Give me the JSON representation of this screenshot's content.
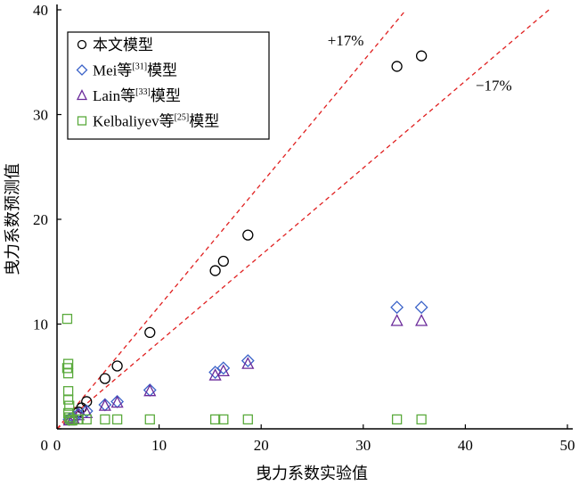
{
  "chart_data": {
    "type": "scatter",
    "title": "",
    "xlabel": "曳力系数实验值",
    "ylabel": "曳力系数预测值",
    "xlim": [
      0,
      50
    ],
    "ylim": [
      0,
      40
    ],
    "xticks": [
      "0",
      "10",
      "20",
      "30",
      "40",
      "50"
    ],
    "yticks": [
      "0",
      "10",
      "20",
      "30",
      "40"
    ],
    "grid": false,
    "legend_position": "top-left",
    "reference_lines": [
      {
        "label": "+17%",
        "slope": 1.17,
        "color": "#e02020"
      },
      {
        "label": "−17%",
        "slope": 0.83,
        "color": "#e02020"
      }
    ],
    "series": [
      {
        "name": "本文模型",
        "sup": "",
        "marker": "circle",
        "color": "#000000",
        "x": [
          2.1,
          2.4,
          2.9,
          4.7,
          5.9,
          9.1,
          15.5,
          16.3,
          18.7,
          33.3,
          35.7
        ],
        "y": [
          1.6,
          2.0,
          2.6,
          4.8,
          6.0,
          9.2,
          15.1,
          16.0,
          18.5,
          34.6,
          35.6
        ]
      },
      {
        "name": "Mei等",
        "sup": "[31]",
        "suffix": "模型",
        "marker": "diamond",
        "color": "#3a62c8",
        "x": [
          1.2,
          1.6,
          2.1,
          2.9,
          4.7,
          5.9,
          9.1,
          15.5,
          16.3,
          18.7,
          33.3,
          35.7
        ],
        "y": [
          0.9,
          1.1,
          1.4,
          1.7,
          2.3,
          2.6,
          3.7,
          5.4,
          5.8,
          6.5,
          11.6,
          11.6
        ]
      },
      {
        "name": "Lain等",
        "sup": "[33]",
        "suffix": "模型",
        "marker": "triangle",
        "color": "#6a2a9a",
        "x": [
          1.2,
          1.6,
          2.1,
          2.9,
          4.7,
          5.9,
          9.1,
          15.5,
          16.3,
          18.7,
          33.3,
          35.7
        ],
        "y": [
          0.8,
          1.0,
          1.3,
          1.5,
          2.2,
          2.5,
          3.6,
          5.1,
          5.5,
          6.2,
          10.3,
          10.3
        ]
      },
      {
        "name": "Kelbaliyev等",
        "sup": "[25]",
        "suffix": "模型",
        "marker": "square",
        "color": "#5aaa3c",
        "x": [
          1.0,
          1.1,
          1.0,
          1.1,
          1.1,
          1.1,
          1.2,
          1.1,
          1.2,
          1.3,
          1.5,
          2.1,
          2.9,
          4.7,
          5.9,
          9.1,
          15.5,
          16.3,
          18.7,
          33.3,
          35.7
        ],
        "y": [
          10.5,
          6.2,
          5.8,
          5.3,
          3.6,
          2.8,
          2.2,
          1.5,
          1.1,
          0.9,
          0.8,
          0.9,
          0.9,
          0.9,
          0.9,
          0.9,
          0.9,
          0.9,
          0.9,
          0.9,
          0.9
        ]
      }
    ]
  },
  "legend": {
    "items": [
      {
        "name": "本文模型",
        "sup": "",
        "suffix": ""
      },
      {
        "name": "Mei等",
        "sup": "[31]",
        "suffix": "模型"
      },
      {
        "name": "Lain等",
        "sup": "[33]",
        "suffix": "模型"
      },
      {
        "name": "Kelbaliyev等",
        "sup": "[25]",
        "suffix": "模型"
      }
    ]
  }
}
